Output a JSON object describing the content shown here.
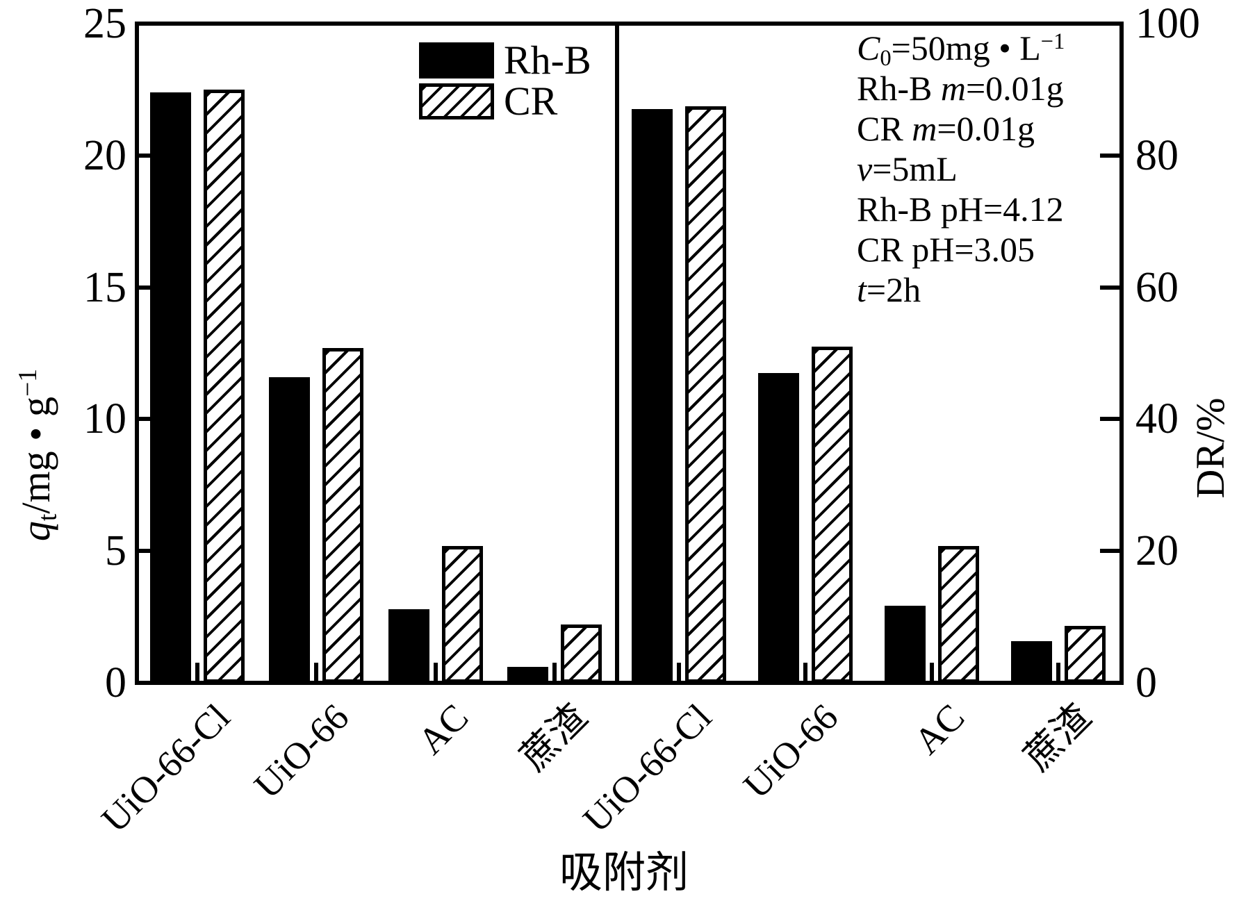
{
  "figure": {
    "background_color": "#ffffff",
    "ink_color": "#000000",
    "legend": {
      "items": [
        {
          "label": "Rh-B",
          "style": "solid"
        },
        {
          "label": "CR",
          "style": "hatched"
        }
      ]
    },
    "annotation_lines": [
      [
        {
          "t": "C",
          "s": "i"
        },
        {
          "t": "0",
          "s": "sub"
        },
        {
          "t": "=50mg • L",
          "s": "n"
        },
        {
          "t": "−1",
          "s": "sup"
        }
      ],
      [
        {
          "t": "Rh-B ",
          "s": "n"
        },
        {
          "t": "m",
          "s": "i"
        },
        {
          "t": "=0.01g",
          "s": "n"
        }
      ],
      [
        {
          "t": "CR ",
          "s": "n"
        },
        {
          "t": "m",
          "s": "i"
        },
        {
          "t": "=0.01g",
          "s": "n"
        }
      ],
      [
        {
          "t": "v",
          "s": "i"
        },
        {
          "t": "=5mL",
          "s": "n"
        }
      ],
      [
        {
          "t": "Rh-B pH=4.12",
          "s": "n"
        }
      ],
      [
        {
          "t": "CR pH=3.05",
          "s": "n"
        }
      ],
      [
        {
          "t": "t",
          "s": "i"
        },
        {
          "t": "=2h",
          "s": "n"
        }
      ]
    ]
  },
  "chart_data": {
    "type": "bar",
    "xlabel": "吸附剂",
    "legend": [
      "Rh-B",
      "CR"
    ],
    "grid": false,
    "panels": [
      {
        "side": "left",
        "y_title_segments": [
          {
            "t": "q",
            "s": "i"
          },
          {
            "t": "t",
            "s": "sub"
          },
          {
            "t": "/mg • g",
            "s": "n"
          },
          {
            "t": "−1",
            "s": "sup"
          }
        ],
        "ylim": [
          0,
          25
        ],
        "yticks": [
          0,
          5,
          10,
          15,
          20,
          25
        ],
        "categories": [
          "UiO-66-Cl",
          "UiO-66",
          "AC",
          "蔗渣"
        ],
        "series": [
          {
            "name": "Rh-B",
            "style": "solid",
            "values": [
              22.4,
              11.6,
              2.8,
              0.6
            ]
          },
          {
            "name": "CR",
            "style": "hatched",
            "values": [
              22.5,
              12.7,
              5.2,
              2.2
            ]
          }
        ]
      },
      {
        "side": "right",
        "y_title_segments": [
          {
            "t": "DR/%",
            "s": "n"
          }
        ],
        "ylim": [
          0,
          100
        ],
        "yticks": [
          0,
          20,
          40,
          60,
          80,
          100
        ],
        "categories": [
          "UiO-66-Cl",
          "UiO-66",
          "AC",
          "蔗渣"
        ],
        "series": [
          {
            "name": "Rh-B",
            "style": "solid",
            "values": [
              87.0,
              47.0,
              11.7,
              6.3
            ]
          },
          {
            "name": "CR",
            "style": "hatched",
            "values": [
              87.5,
              51.0,
              20.8,
              8.6
            ]
          }
        ]
      }
    ]
  }
}
